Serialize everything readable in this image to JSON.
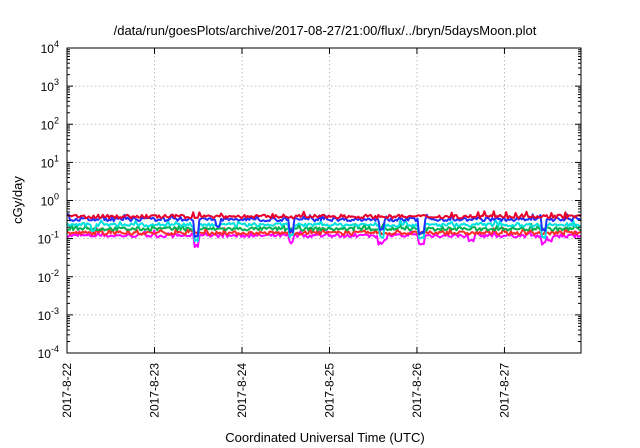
{
  "chart_data": {
    "type": "line",
    "title": "/data/run/goesPlots/archive/2017-08-27/21:00/flux/../bryn/5daysMoon.plot",
    "xlabel": "Coordinated Universal Time (UTC)",
    "ylabel": "cGy/day",
    "y_scale": "log",
    "ylim": [
      0.0001,
      10000
    ],
    "y_ticks": [
      {
        "value": 0.0001,
        "base": "10",
        "exp": "-4"
      },
      {
        "value": 0.001,
        "base": "10",
        "exp": "-3"
      },
      {
        "value": 0.01,
        "base": "10",
        "exp": "-2"
      },
      {
        "value": 0.1,
        "base": "10",
        "exp": "-1"
      },
      {
        "value": 1,
        "base": "10",
        "exp": "0"
      },
      {
        "value": 10,
        "base": "10",
        "exp": "1"
      },
      {
        "value": 100,
        "base": "10",
        "exp": "2"
      },
      {
        "value": 1000,
        "base": "10",
        "exp": "3"
      },
      {
        "value": 10000,
        "base": "10",
        "exp": "4"
      }
    ],
    "x_ticks": [
      "2017-8-22",
      "2017-8-23",
      "2017-8-24",
      "2017-8-25",
      "2017-8-26",
      "2017-8-27"
    ],
    "xlim": [
      "2017-08-22T00:00",
      "2017-08-27T21:00"
    ],
    "grid": true,
    "legend": "none",
    "series": [
      {
        "color": "#ff00ff",
        "base": 0.12,
        "dips": [
          [
            1.48,
            0.065
          ],
          [
            2.56,
            0.08
          ],
          [
            3.58,
            0.075
          ],
          [
            3.62,
            0.09
          ],
          [
            4.05,
            0.07
          ],
          [
            4.62,
            0.085
          ],
          [
            5.45,
            0.075
          ],
          [
            5.52,
            0.09
          ]
        ]
      },
      {
        "color": "#ff2a2a",
        "base": 0.14,
        "dips": []
      },
      {
        "color": "#00b050",
        "base": 0.18,
        "dips": [
          [
            1.48,
            0.12
          ],
          [
            4.05,
            0.13
          ]
        ]
      },
      {
        "color": "#00e0e0",
        "base": 0.23,
        "dips": [
          [
            0.3,
            0.17
          ],
          [
            1.48,
            0.09
          ],
          [
            2.56,
            0.12
          ],
          [
            3.6,
            0.11
          ],
          [
            4.05,
            0.1
          ],
          [
            5.45,
            0.11
          ]
        ]
      },
      {
        "color": "#2030ff",
        "base": 0.32,
        "dips": [
          [
            1.48,
            0.12
          ],
          [
            1.73,
            0.2
          ],
          [
            2.56,
            0.15
          ],
          [
            3.6,
            0.17
          ],
          [
            4.05,
            0.14
          ],
          [
            5.45,
            0.16
          ]
        ]
      },
      {
        "color": "#e8002a",
        "base": 0.38,
        "dips": []
      }
    ]
  }
}
